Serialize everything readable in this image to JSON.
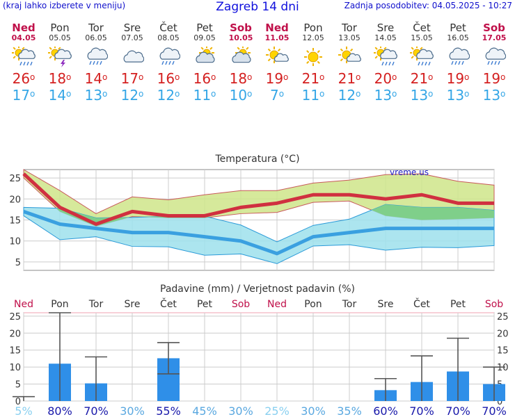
{
  "header": {
    "left_note": "(kraj lahko izberete v meniju)",
    "title": "Zagreb 14 dni",
    "updated": "Zadnja posodobitev: 04.05.2025 - 10:27"
  },
  "days": [
    {
      "name": "Ned",
      "date": "04.05",
      "weekend": true,
      "icon": "sun-cloud-rain-icon",
      "tmax": "26",
      "tmin": "17"
    },
    {
      "name": "Pon",
      "date": "05.05",
      "weekend": false,
      "icon": "sun-cloud-thunder-icon",
      "tmax": "18",
      "tmin": "14"
    },
    {
      "name": "Tor",
      "date": "06.05",
      "weekend": false,
      "icon": "cloud-rain-icon",
      "tmax": "14",
      "tmin": "13"
    },
    {
      "name": "Sre",
      "date": "07.05",
      "weekend": false,
      "icon": "cloud-icon",
      "tmax": "17",
      "tmin": "12"
    },
    {
      "name": "Čet",
      "date": "08.05",
      "weekend": false,
      "icon": "cloud-rain-icon",
      "tmax": "16",
      "tmin": "12"
    },
    {
      "name": "Pet",
      "date": "09.05",
      "weekend": false,
      "icon": "sun-cloud-icon",
      "tmax": "16",
      "tmin": "11"
    },
    {
      "name": "Sob",
      "date": "10.05",
      "weekend": true,
      "icon": "sun-cloud-icon",
      "tmax": "18",
      "tmin": "10"
    },
    {
      "name": "Ned",
      "date": "11.05",
      "weekend": true,
      "icon": "sun-small-cloud-icon",
      "tmax": "19",
      "tmin": "7"
    },
    {
      "name": "Pon",
      "date": "12.05",
      "weekend": false,
      "icon": "sun-icon",
      "tmax": "21",
      "tmin": "11"
    },
    {
      "name": "Tor",
      "date": "13.05",
      "weekend": false,
      "icon": "sun-small-cloud-icon",
      "tmax": "21",
      "tmin": "12"
    },
    {
      "name": "Sre",
      "date": "14.05",
      "weekend": false,
      "icon": "sun-cloud-rain-icon",
      "tmax": "20",
      "tmin": "13"
    },
    {
      "name": "Čet",
      "date": "15.05",
      "weekend": false,
      "icon": "sun-cloud-rain-icon",
      "tmax": "21",
      "tmin": "13"
    },
    {
      "name": "Pet",
      "date": "16.05",
      "weekend": false,
      "icon": "cloud-rain-icon",
      "tmax": "19",
      "tmin": "13"
    },
    {
      "name": "Sob",
      "date": "17.05",
      "weekend": true,
      "icon": "cloud-rain-icon",
      "tmax": "19",
      "tmin": "13"
    }
  ],
  "degree_symbol": "o",
  "colors": {
    "max": "#d03040",
    "min": "#3aa0e0",
    "max_band": "#cfe58a",
    "min_band": "#9ee0ec",
    "overlap": "#7fcf8a",
    "bar": "#2f8fe8",
    "weekend": "#c0104a",
    "header": "#1010cc"
  },
  "chart_data": [
    {
      "type": "line",
      "title": "Temperatura",
      "title_unit": "(°C)",
      "watermark": "vreme.us",
      "ylim": [
        3,
        27
      ],
      "yticks": [
        5,
        10,
        15,
        20,
        25
      ],
      "x": [
        "04.05",
        "05.05",
        "06.05",
        "07.05",
        "08.05",
        "09.05",
        "10.05",
        "11.05",
        "12.05",
        "13.05",
        "14.05",
        "15.05",
        "16.05",
        "17.05"
      ],
      "series": [
        {
          "values": [
            26,
            18,
            14,
            17,
            16,
            16,
            18,
            19,
            21,
            21,
            20,
            21,
            19,
            19
          ]
        },
        {
          "values": [
            17,
            14,
            13,
            12,
            12,
            11,
            10,
            7,
            11,
            12,
            13,
            13,
            13,
            13
          ]
        }
      ],
      "max_band": {
        "upper": [
          27,
          22,
          16.5,
          20.5,
          19.8,
          21,
          22,
          22,
          23.8,
          24.5,
          25.8,
          26,
          24.2,
          23.3
        ],
        "lower": [
          25,
          17,
          13.5,
          15.8,
          15.5,
          15.5,
          16.5,
          16.8,
          19.2,
          19.5,
          16,
          15,
          15.2,
          15.5
        ]
      },
      "min_band": {
        "upper": [
          18,
          17.8,
          15.5,
          15.6,
          15.9,
          15.9,
          13.8,
          9.8,
          13.7,
          15.2,
          18.7,
          18,
          18,
          17.3
        ],
        "lower": [
          16,
          10.3,
          11,
          8.7,
          8.6,
          6.6,
          6.9,
          4.6,
          8.8,
          9.1,
          7.8,
          8.5,
          8.4,
          8.9
        ]
      }
    },
    {
      "type": "bar",
      "title": "Padavine (mm) / Verjetnost padavin (%)",
      "ylim": [
        0,
        26
      ],
      "yticks": [
        0,
        5,
        10,
        15,
        20,
        25
      ],
      "categories": [
        "Ned",
        "Pon",
        "Tor",
        "Sre",
        "Čet",
        "Pet",
        "Sob",
        "Ned",
        "Pon",
        "Tor",
        "Sre",
        "Čet",
        "Pet",
        "Sob"
      ],
      "weekend": [
        true,
        false,
        false,
        false,
        false,
        false,
        true,
        true,
        false,
        false,
        false,
        false,
        false,
        true
      ],
      "values": [
        0,
        11,
        5.2,
        0,
        12.6,
        0,
        0,
        0,
        0,
        0,
        3.2,
        5.6,
        8.7,
        5
      ],
      "error_high": [
        1.3,
        26,
        13,
        0,
        17.2,
        0,
        0,
        0,
        0,
        0,
        6.6,
        13.3,
        18.5,
        10
      ],
      "error_low": [
        0,
        0,
        0,
        0,
        8,
        0,
        0,
        0,
        0,
        0,
        0,
        0,
        0,
        0
      ],
      "probability": [
        "5%",
        "80%",
        "70%",
        "30%",
        "55%",
        "45%",
        "30%",
        "25%",
        "30%",
        "35%",
        "60%",
        "70%",
        "70%",
        "70%"
      ],
      "probability_strength": [
        0.1,
        1,
        0.9,
        0.4,
        0.7,
        0.55,
        0.4,
        0.3,
        0.4,
        0.45,
        0.75,
        0.9,
        0.9,
        0.9
      ]
    }
  ]
}
